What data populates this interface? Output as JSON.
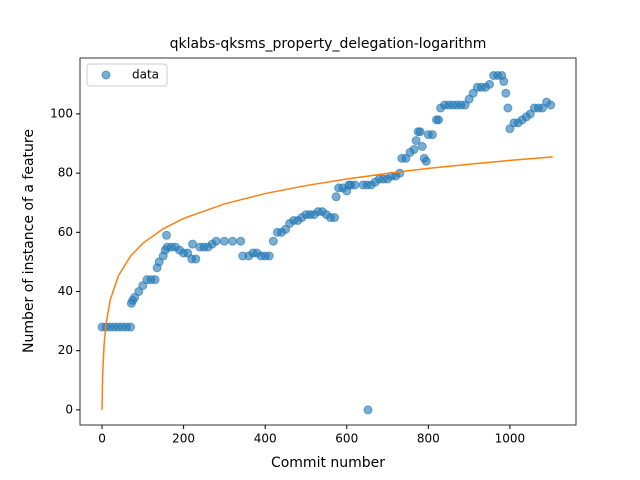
{
  "chart_data": {
    "type": "scatter",
    "title": "qklabs-qksms_property_delegation-logarithm",
    "x_label": "Commit number",
    "y_label": "Number of instance of a feature",
    "xlim": [
      -54,
      1162
    ],
    "ylim": [
      -5.1,
      118.9
    ],
    "xticks": [
      0,
      200,
      400,
      600,
      800,
      1000
    ],
    "yticks": [
      0,
      20,
      40,
      60,
      80,
      100
    ],
    "legend": "upper left",
    "series": [
      {
        "name": "data",
        "type": "scatter",
        "color": "#1f77b4",
        "x": [
          0,
          10,
          20,
          30,
          40,
          50,
          60,
          70,
          72,
          75,
          80,
          90,
          100,
          110,
          120,
          130,
          135,
          140,
          150,
          155,
          158,
          160,
          170,
          180,
          190,
          200,
          210,
          220,
          222,
          230,
          240,
          250,
          260,
          270,
          280,
          300,
          320,
          340,
          345,
          360,
          370,
          380,
          390,
          400,
          410,
          420,
          430,
          440,
          450,
          460,
          470,
          480,
          490,
          500,
          510,
          520,
          530,
          540,
          550,
          560,
          570,
          574,
          580,
          590,
          600,
          605,
          610,
          620,
          640,
          650,
          652,
          660,
          670,
          680,
          690,
          700,
          710,
          720,
          730,
          735,
          745,
          755,
          765,
          770,
          775,
          780,
          785,
          790,
          795,
          800,
          810,
          820,
          825,
          830,
          840,
          850,
          860,
          870,
          880,
          890,
          900,
          910,
          920,
          930,
          940,
          950,
          960,
          970,
          980,
          985,
          990,
          995,
          1000,
          1010,
          1020,
          1030,
          1040,
          1050,
          1060,
          1070,
          1080,
          1090,
          1100
        ],
        "values": [
          28,
          28,
          28,
          28,
          28,
          28,
          28,
          28,
          36,
          37,
          38,
          40,
          42,
          44,
          44,
          44,
          48,
          50,
          52,
          54,
          59,
          55,
          55,
          55,
          54,
          53,
          53,
          51,
          56,
          51,
          55,
          55,
          55,
          56,
          57,
          57,
          57,
          57,
          52,
          52,
          53,
          53,
          52,
          52,
          52,
          57,
          60,
          60,
          61,
          63,
          64,
          64,
          65,
          66,
          66,
          66,
          67,
          67,
          66,
          65,
          65,
          72,
          75,
          75,
          74,
          76,
          76,
          76,
          76,
          76,
          0,
          76,
          77,
          78,
          78,
          78,
          79,
          79,
          80,
          85,
          85,
          87,
          88,
          91,
          94,
          94,
          89,
          85,
          84,
          93,
          93,
          98,
          98,
          102,
          103,
          103,
          103,
          103,
          103,
          103,
          105,
          107,
          109,
          109,
          109,
          110,
          113,
          113,
          113,
          111,
          107,
          102,
          95,
          97,
          97,
          98,
          99,
          100,
          102,
          102,
          102,
          104,
          103
        ]
      },
      {
        "type": "line",
        "color": "#ff7f0e",
        "x": [
          0,
          1,
          2,
          5,
          10,
          20,
          40,
          70,
          100,
          150,
          200,
          300,
          400,
          500,
          600,
          700,
          800,
          900,
          1000,
          1105
        ],
        "values": [
          0,
          8.5,
          13.4,
          21.9,
          29.3,
          37.1,
          45.3,
          52.0,
          56.3,
          61.2,
          64.7,
          69.6,
          73.1,
          75.8,
          78.0,
          79.9,
          81.6,
          83.0,
          84.3,
          85.5
        ]
      }
    ]
  }
}
